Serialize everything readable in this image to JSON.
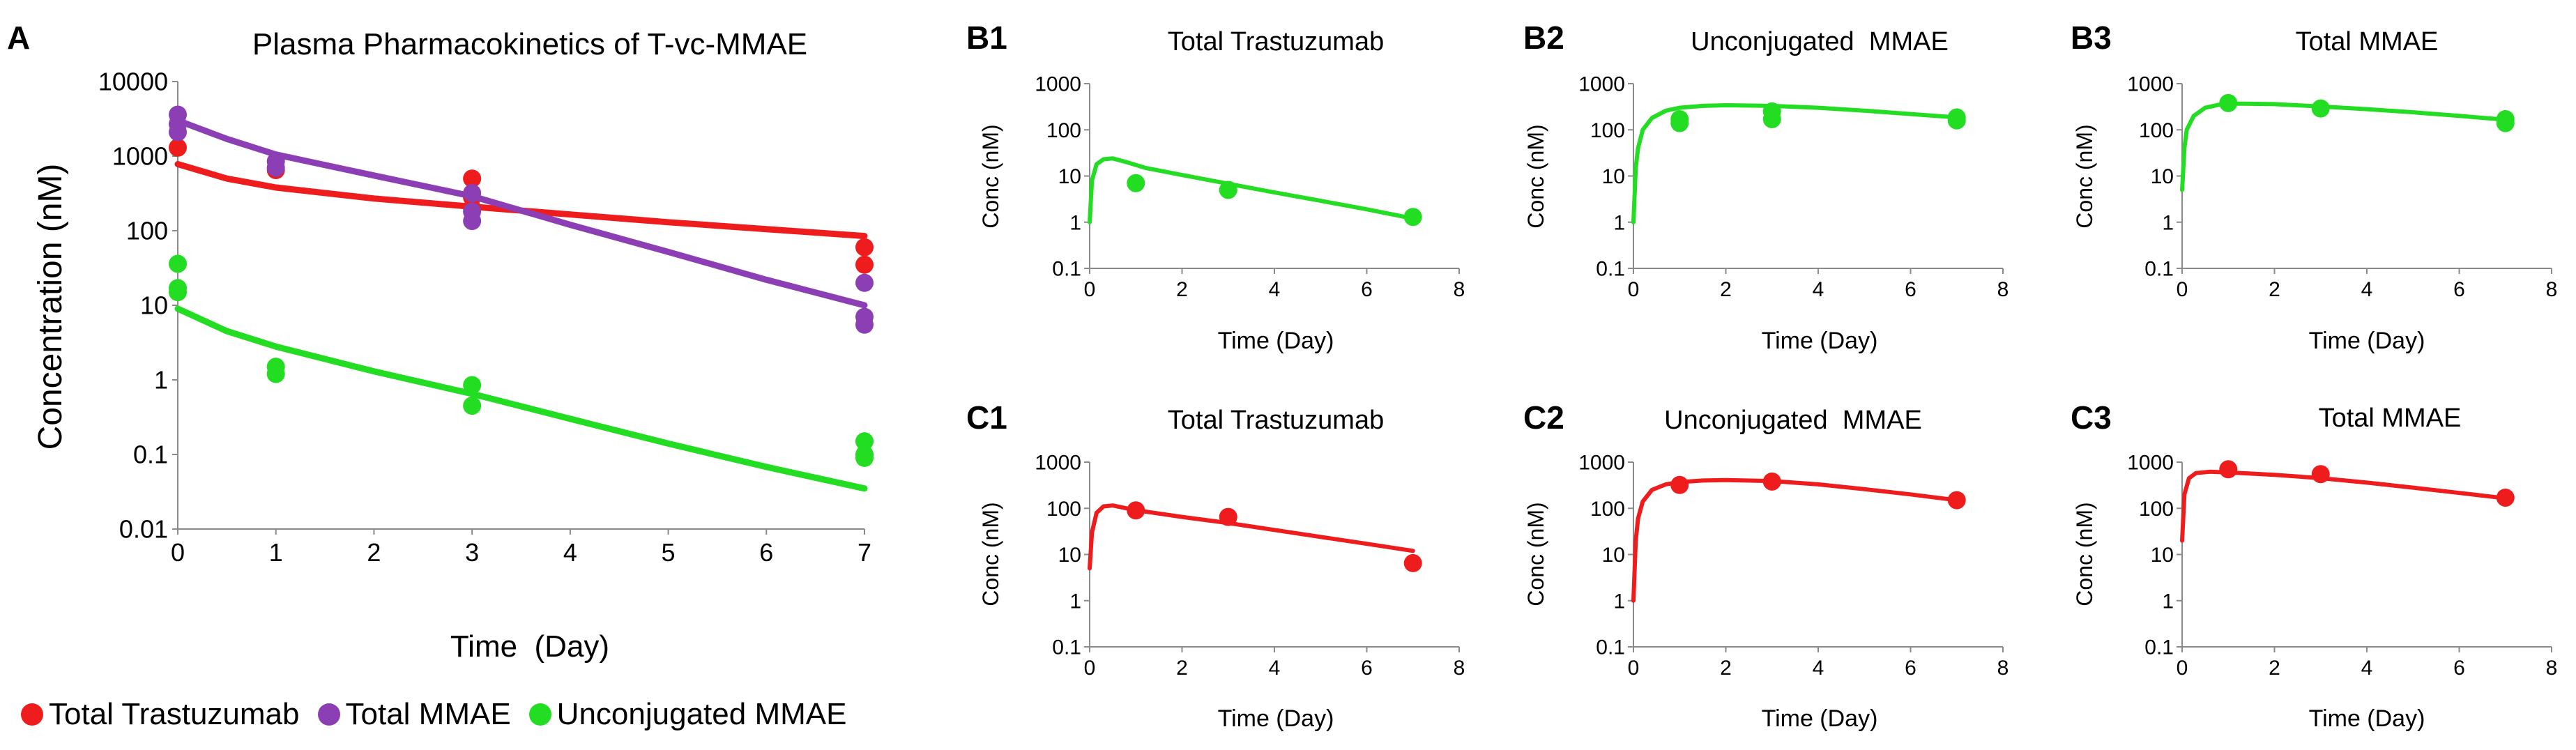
{
  "colors": {
    "red": "#ee1c1c",
    "purple": "#8c3fb5",
    "green": "#22dd22"
  },
  "legend": {
    "items": [
      {
        "label": "Total Trastuzumab",
        "color": "#ee1c1c"
      },
      {
        "label": "Total MMAE",
        "color": "#8c3fb5"
      },
      {
        "label": "Unconjugated MMAE",
        "color": "#22dd22"
      }
    ]
  },
  "chart_data": [
    {
      "id": "A",
      "panel": "A",
      "type": "scatter+line",
      "title": "Plasma Pharmacokinetics of T-vc-MMAE",
      "xlabel": "Time  (Day)",
      "ylabel": "Concentration (nM)",
      "xlim": [
        0,
        7
      ],
      "ylim": [
        0.01,
        10000
      ],
      "yscale": "log",
      "xticks": [
        "0",
        "1",
        "2",
        "3",
        "4",
        "5",
        "6",
        "7"
      ],
      "yticks": [
        "0.01",
        "0.1",
        "1",
        "10",
        "100",
        "1000",
        "10000"
      ],
      "series": [
        {
          "name": "Total Trastuzumab",
          "color": "#ee1c1c",
          "points": [
            [
              0,
              1300
            ],
            [
              1,
              650
            ],
            [
              3,
              500
            ],
            [
              3,
              280
            ],
            [
              3,
              200
            ],
            [
              7,
              60
            ],
            [
              7,
              35
            ]
          ],
          "curve": [
            [
              0,
              780
            ],
            [
              0.5,
              500
            ],
            [
              1,
              380
            ],
            [
              2,
              270
            ],
            [
              3,
              210
            ],
            [
              4,
              165
            ],
            [
              5,
              130
            ],
            [
              6,
              105
            ],
            [
              7,
              85
            ]
          ]
        },
        {
          "name": "Total MMAE",
          "color": "#8c3fb5",
          "points": [
            [
              0,
              3600
            ],
            [
              0,
              2700
            ],
            [
              0,
              2100
            ],
            [
              1,
              850
            ],
            [
              1,
              700
            ],
            [
              3,
              320
            ],
            [
              3,
              180
            ],
            [
              3,
              135
            ],
            [
              7,
              20
            ],
            [
              7,
              7
            ],
            [
              7,
              5.5
            ]
          ],
          "curve": [
            [
              0,
              3000
            ],
            [
              0.5,
              1700
            ],
            [
              1,
              1050
            ],
            [
              2,
              550
            ],
            [
              3,
              290
            ],
            [
              4,
              120
            ],
            [
              5,
              52
            ],
            [
              6,
              22
            ],
            [
              7,
              10
            ]
          ]
        },
        {
          "name": "Unconjugated MMAE",
          "color": "#22dd22",
          "points": [
            [
              0,
              36
            ],
            [
              0,
              17
            ],
            [
              0,
              15
            ],
            [
              1,
              1.5
            ],
            [
              1,
              1.2
            ],
            [
              3,
              0.85
            ],
            [
              3,
              0.45
            ],
            [
              7,
              0.15
            ],
            [
              7,
              0.1
            ],
            [
              7,
              0.09
            ]
          ],
          "curve": [
            [
              0,
              9
            ],
            [
              0.5,
              4.5
            ],
            [
              1,
              2.8
            ],
            [
              2,
              1.3
            ],
            [
              3,
              0.65
            ],
            [
              4,
              0.3
            ],
            [
              5,
              0.14
            ],
            [
              6,
              0.068
            ],
            [
              7,
              0.035
            ]
          ]
        }
      ]
    },
    {
      "id": "B1",
      "panel": "B1",
      "type": "scatter+line",
      "title": "Total Trastuzumab",
      "xlabel": "Time (Day)",
      "ylabel": "Conc (nM)",
      "xlim": [
        0,
        8
      ],
      "ylim": [
        0.1,
        1000
      ],
      "yscale": "log",
      "xticks": [
        "0",
        "2",
        "4",
        "6",
        "8"
      ],
      "yticks": [
        "0.1",
        "1",
        "10",
        "100",
        "1000"
      ],
      "series": [
        {
          "name": "Total Trastuzumab",
          "color": "#22dd22",
          "points": [
            [
              1,
              7
            ],
            [
              3,
              5
            ],
            [
              7,
              1.3
            ]
          ],
          "curve": [
            [
              0,
              1
            ],
            [
              0.05,
              8
            ],
            [
              0.15,
              18
            ],
            [
              0.3,
              23
            ],
            [
              0.5,
              24
            ],
            [
              0.8,
              20
            ],
            [
              1.2,
              15
            ],
            [
              2,
              10.5
            ],
            [
              3,
              6.8
            ],
            [
              4,
              4.4
            ],
            [
              5,
              2.9
            ],
            [
              6,
              1.9
            ],
            [
              7,
              1.2
            ]
          ]
        }
      ]
    },
    {
      "id": "B2",
      "panel": "B2",
      "type": "scatter+line",
      "title": "Unconjugated  MMAE",
      "xlabel": "Time (Day)",
      "ylabel": "Conc (nM)",
      "xlim": [
        0,
        8
      ],
      "ylim": [
        0.1,
        1000
      ],
      "yscale": "log",
      "xticks": [
        "0",
        "2",
        "4",
        "6",
        "8"
      ],
      "yticks": [
        "0.1",
        "1",
        "10",
        "100",
        "1000"
      ],
      "series": [
        {
          "name": "Unconjugated MMAE",
          "color": "#22dd22",
          "points": [
            [
              1,
              170
            ],
            [
              1,
              140
            ],
            [
              3,
              250
            ],
            [
              3,
              170
            ],
            [
              7,
              185
            ],
            [
              7,
              160
            ]
          ],
          "curve": [
            [
              0,
              1
            ],
            [
              0.05,
              15
            ],
            [
              0.1,
              40
            ],
            [
              0.2,
              100
            ],
            [
              0.4,
              180
            ],
            [
              0.7,
              260
            ],
            [
              1,
              300
            ],
            [
              1.5,
              330
            ],
            [
              2,
              340
            ],
            [
              3,
              330
            ],
            [
              4,
              300
            ],
            [
              5,
              260
            ],
            [
              6,
              220
            ],
            [
              7,
              185
            ]
          ]
        }
      ]
    },
    {
      "id": "B3",
      "panel": "B3",
      "type": "scatter+line",
      "title": "Total MMAE",
      "xlabel": "Time (Day)",
      "ylabel": "Conc (nM)",
      "xlim": [
        0,
        8
      ],
      "ylim": [
        0.1,
        1000
      ],
      "yscale": "log",
      "xticks": [
        "0",
        "2",
        "4",
        "6",
        "8"
      ],
      "yticks": [
        "0.1",
        "1",
        "10",
        "100",
        "1000"
      ],
      "series": [
        {
          "name": "Total MMAE",
          "color": "#22dd22",
          "points": [
            [
              1,
              380
            ],
            [
              3,
              290
            ],
            [
              7,
              170
            ],
            [
              7,
              140
            ]
          ],
          "curve": [
            [
              0,
              5
            ],
            [
              0.05,
              40
            ],
            [
              0.1,
              100
            ],
            [
              0.25,
              200
            ],
            [
              0.5,
              300
            ],
            [
              0.8,
              350
            ],
            [
              1.2,
              370
            ],
            [
              2,
              360
            ],
            [
              3,
              320
            ],
            [
              4,
              280
            ],
            [
              5,
              240
            ],
            [
              6,
              200
            ],
            [
              7,
              165
            ]
          ]
        }
      ]
    },
    {
      "id": "C1",
      "panel": "C1",
      "type": "scatter+line",
      "title": "Total Trastuzumab",
      "xlabel": "Time (Day)",
      "ylabel": "Conc (nM)",
      "xlim": [
        0,
        8
      ],
      "ylim": [
        0.1,
        1000
      ],
      "yscale": "log",
      "xticks": [
        "0",
        "2",
        "4",
        "6",
        "8"
      ],
      "yticks": [
        "0.1",
        "1",
        "10",
        "100",
        "1000"
      ],
      "series": [
        {
          "name": "Total Trastuzumab",
          "color": "#ee1c1c",
          "points": [
            [
              1,
              90
            ],
            [
              3,
              65
            ],
            [
              7,
              6.5
            ]
          ],
          "curve": [
            [
              0,
              5
            ],
            [
              0.05,
              30
            ],
            [
              0.15,
              80
            ],
            [
              0.3,
              110
            ],
            [
              0.5,
              115
            ],
            [
              0.8,
              100
            ],
            [
              1.2,
              85
            ],
            [
              2,
              65
            ],
            [
              3,
              48
            ],
            [
              4,
              34
            ],
            [
              5,
              24
            ],
            [
              6,
              17
            ],
            [
              7,
              12
            ]
          ]
        }
      ]
    },
    {
      "id": "C2",
      "panel": "C2",
      "type": "scatter+line",
      "title": "Unconjugated  MMAE",
      "xlabel": "Time (Day)",
      "ylabel": "Conc (nM)",
      "xlim": [
        0,
        8
      ],
      "ylim": [
        0.1,
        1000
      ],
      "yscale": "log",
      "xticks": [
        "0",
        "2",
        "4",
        "6",
        "8"
      ],
      "yticks": [
        "0.1",
        "1",
        "10",
        "100",
        "1000"
      ],
      "series": [
        {
          "name": "Unconjugated MMAE",
          "color": "#ee1c1c",
          "points": [
            [
              1,
              320
            ],
            [
              3,
              380
            ],
            [
              7,
              150
            ]
          ],
          "curve": [
            [
              0,
              1
            ],
            [
              0.05,
              20
            ],
            [
              0.1,
              60
            ],
            [
              0.2,
              140
            ],
            [
              0.4,
              250
            ],
            [
              0.7,
              330
            ],
            [
              1,
              370
            ],
            [
              1.5,
              400
            ],
            [
              2,
              410
            ],
            [
              3,
              390
            ],
            [
              4,
              330
            ],
            [
              5,
              260
            ],
            [
              6,
              200
            ],
            [
              7,
              150
            ]
          ]
        }
      ]
    },
    {
      "id": "C3",
      "panel": "C3",
      "type": "scatter+line",
      "title": "Total MMAE",
      "xlabel": "Time (Day)",
      "ylabel": "Conc (nM)",
      "xlim": [
        0,
        8
      ],
      "ylim": [
        0.1,
        1000
      ],
      "yscale": "log",
      "xticks": [
        "0",
        "2",
        "4",
        "6",
        "8"
      ],
      "yticks": [
        "0.1",
        "1",
        "10",
        "100",
        "1000"
      ],
      "series": [
        {
          "name": "Total MMAE",
          "color": "#ee1c1c",
          "points": [
            [
              1,
              700
            ],
            [
              3,
              550
            ],
            [
              7,
              170
            ]
          ],
          "curve": [
            [
              0,
              20
            ],
            [
              0.05,
              200
            ],
            [
              0.15,
              450
            ],
            [
              0.3,
              580
            ],
            [
              0.6,
              620
            ],
            [
              1,
              600
            ],
            [
              2,
              530
            ],
            [
              3,
              450
            ],
            [
              4,
              360
            ],
            [
              5,
              280
            ],
            [
              6,
              215
            ],
            [
              7,
              165
            ]
          ]
        }
      ]
    }
  ]
}
